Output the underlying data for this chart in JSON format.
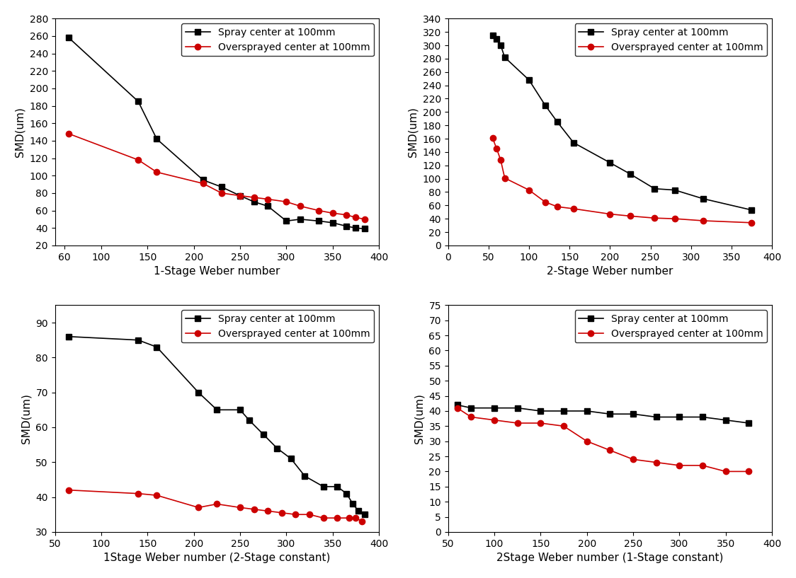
{
  "subplot1": {
    "xlabel": "1-Stage Weber number",
    "ylabel": "SMD(um)",
    "xlim": [
      50,
      400
    ],
    "ylim": [
      20,
      280
    ],
    "xticks": [
      60,
      100,
      150,
      200,
      250,
      300,
      350,
      400
    ],
    "yticks": [
      20,
      40,
      60,
      80,
      100,
      120,
      140,
      160,
      180,
      200,
      220,
      240,
      260,
      280
    ],
    "black_x": [
      65,
      140,
      160,
      210,
      230,
      250,
      265,
      280,
      300,
      315,
      335,
      350,
      365,
      375,
      385
    ],
    "black_y": [
      258,
      185,
      142,
      95,
      87,
      77,
      70,
      65,
      48,
      50,
      48,
      46,
      42,
      40,
      39
    ],
    "red_x": [
      65,
      140,
      160,
      210,
      230,
      250,
      265,
      280,
      300,
      315,
      335,
      350,
      365,
      375,
      385
    ],
    "red_y": [
      148,
      118,
      104,
      91,
      80,
      77,
      75,
      73,
      70,
      65,
      60,
      57,
      55,
      52,
      50
    ],
    "legend1": "Spray center at 100mm",
    "legend2": "Oversprayed center at 100mm"
  },
  "subplot2": {
    "xlabel": "2-Stage Weber number",
    "ylabel": "SMD(um)",
    "xlim": [
      0,
      400
    ],
    "ylim": [
      0,
      340
    ],
    "xticks": [
      0,
      50,
      100,
      150,
      200,
      250,
      300,
      350,
      400
    ],
    "yticks": [
      0,
      20,
      40,
      60,
      80,
      100,
      120,
      140,
      160,
      180,
      200,
      220,
      240,
      260,
      280,
      300,
      320,
      340
    ],
    "black_x": [
      55,
      60,
      65,
      70,
      100,
      120,
      135,
      155,
      200,
      225,
      255,
      280,
      315,
      375
    ],
    "black_y": [
      315,
      310,
      300,
      282,
      248,
      210,
      185,
      154,
      124,
      107,
      85,
      83,
      70,
      53
    ],
    "red_x": [
      55,
      60,
      65,
      70,
      100,
      120,
      135,
      155,
      200,
      225,
      255,
      280,
      315,
      375
    ],
    "red_y": [
      161,
      145,
      128,
      101,
      83,
      65,
      58,
      55,
      47,
      44,
      41,
      40,
      37,
      34
    ],
    "legend1": "Spray center at 100mm",
    "legend2": "Oversprayed center at 100mm"
  },
  "subplot3": {
    "xlabel": "1Stage Weber number (2-Stage constant)",
    "ylabel": "SMD(um)",
    "xlim": [
      50,
      400
    ],
    "ylim": [
      30,
      95
    ],
    "xticks": [
      50,
      100,
      150,
      200,
      250,
      300,
      350,
      400
    ],
    "yticks": [
      30,
      40,
      50,
      60,
      70,
      80,
      90
    ],
    "black_x": [
      65,
      140,
      160,
      205,
      225,
      250,
      260,
      275,
      290,
      305,
      320,
      340,
      355,
      365,
      372,
      378,
      385
    ],
    "black_y": [
      86,
      85,
      83,
      70,
      65,
      65,
      62,
      58,
      54,
      51,
      46,
      43,
      43,
      41,
      38,
      36,
      35
    ],
    "red_x": [
      65,
      140,
      160,
      205,
      225,
      250,
      265,
      280,
      295,
      310,
      325,
      340,
      355,
      368,
      375,
      382
    ],
    "red_y": [
      42,
      41,
      40.5,
      37,
      38,
      37,
      36.5,
      36,
      35.5,
      35,
      35,
      34,
      34,
      34,
      34,
      33
    ],
    "legend1": "Spray center at 100mm",
    "legend2": "Oversprayed center at 100mm"
  },
  "subplot4": {
    "xlabel": "2Stage Weber number (1-Stage constant)",
    "ylabel": "SMD(um)",
    "xlim": [
      50,
      400
    ],
    "ylim": [
      0,
      75
    ],
    "xticks": [
      50,
      100,
      150,
      200,
      250,
      300,
      350,
      400
    ],
    "yticks": [
      0,
      5,
      10,
      15,
      20,
      25,
      30,
      35,
      40,
      45,
      50,
      55,
      60,
      65,
      70,
      75
    ],
    "black_x": [
      60,
      75,
      100,
      125,
      150,
      175,
      200,
      225,
      250,
      275,
      300,
      325,
      350,
      375
    ],
    "black_y": [
      42,
      41,
      41,
      41,
      40,
      40,
      40,
      39,
      39,
      38,
      38,
      38,
      37,
      36
    ],
    "red_x": [
      60,
      75,
      100,
      125,
      150,
      175,
      200,
      225,
      250,
      275,
      300,
      325,
      350,
      375
    ],
    "red_y": [
      41,
      38,
      37,
      36,
      36,
      35,
      30,
      27,
      24,
      23,
      22,
      22,
      20,
      20
    ],
    "legend1": "Spray center at 100mm",
    "legend2": "Oversprayed center at 100mm"
  },
  "black_color": "#000000",
  "red_color": "#cc0000",
  "marker_black": "s",
  "marker_red": "o",
  "marker_size": 6,
  "line_width": 1.2,
  "font_size_label": 11,
  "font_size_tick": 10,
  "font_size_legend": 10
}
